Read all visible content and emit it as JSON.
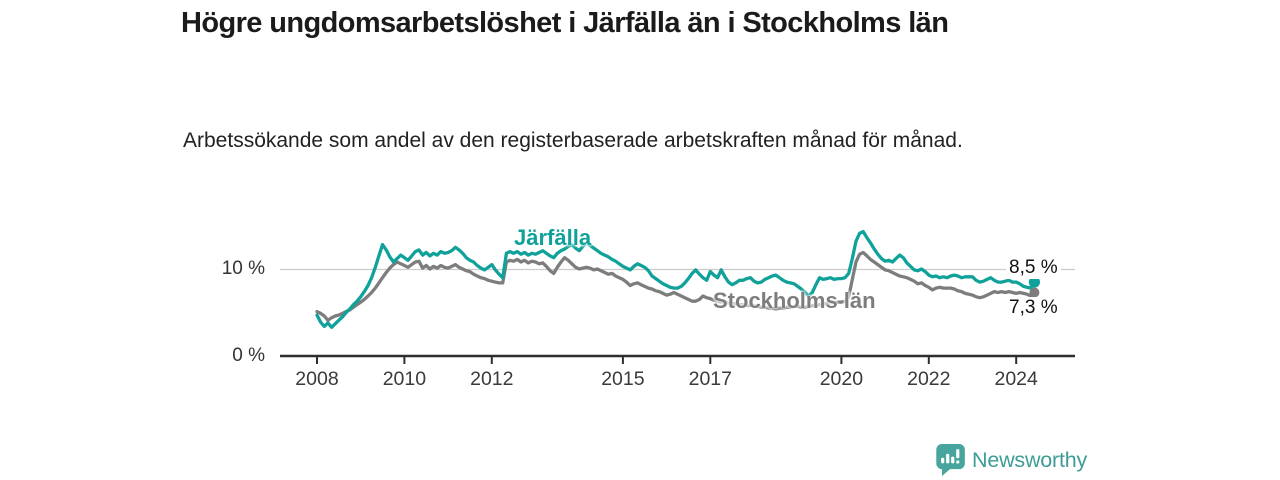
{
  "header": {
    "title": "Högre ungdomsarbetslöshet i Järfälla än i Stockholms län",
    "subtitle": "Arbetssökande som andel av den registerbaserade arbetskraften månad för månad."
  },
  "chart_data": {
    "type": "line",
    "title": "Högre ungdomsarbetslöshet i Järfälla än i Stockholms län",
    "subtitle": "Arbetssökande som andel av den registerbaserade arbetskraften månad för månad.",
    "x_start": 2008.0,
    "x_step_years": 0.0833333,
    "x_end": 2024.5,
    "ylim": [
      0,
      15.5
    ],
    "grid": "horizontal-at-10-only",
    "legend_position": "inline-labels",
    "y_ticks": [
      {
        "value": 0,
        "label": "0 %"
      },
      {
        "value": 10,
        "label": "10 %"
      }
    ],
    "x_ticks": [
      {
        "year": 2008,
        "label": "2008"
      },
      {
        "year": 2010,
        "label": "2010"
      },
      {
        "year": 2012,
        "label": "2012"
      },
      {
        "year": 2015,
        "label": "2015"
      },
      {
        "year": 2017,
        "label": "2017"
      },
      {
        "year": 2020,
        "label": "2020"
      },
      {
        "year": 2022,
        "label": "2022"
      },
      {
        "year": 2024,
        "label": "2024"
      }
    ],
    "series": [
      {
        "name": "Järfälla",
        "color": "#10A29A",
        "end_label": "8,5 %",
        "end_value": 8.5,
        "values": [
          4.7,
          3.9,
          3.4,
          3.8,
          3.3,
          3.7,
          4.1,
          4.5,
          5.0,
          5.4,
          5.9,
          6.3,
          6.8,
          7.4,
          8.1,
          9.0,
          10.2,
          11.5,
          12.8,
          12.2,
          11.4,
          10.8,
          11.2,
          11.6,
          11.3,
          11.0,
          11.5,
          12.0,
          12.2,
          11.6,
          11.9,
          11.5,
          11.8,
          11.6,
          12.0,
          11.8,
          11.9,
          12.1,
          12.5,
          12.2,
          11.8,
          11.3,
          11.0,
          10.8,
          10.4,
          10.1,
          9.9,
          10.2,
          10.5,
          9.9,
          9.4,
          9.0,
          11.8,
          12.0,
          11.8,
          12.0,
          11.7,
          11.9,
          11.6,
          11.8,
          11.7,
          11.9,
          12.1,
          11.8,
          11.5,
          11.3,
          11.8,
          12.1,
          12.3,
          12.6,
          12.8,
          12.4,
          12.1,
          12.6,
          13.0,
          12.7,
          12.4,
          12.1,
          11.8,
          11.6,
          11.4,
          11.1,
          10.9,
          10.6,
          10.3,
          10.1,
          9.9,
          10.3,
          10.6,
          10.4,
          10.2,
          9.8,
          9.2,
          8.9,
          8.6,
          8.3,
          8.1,
          7.9,
          7.8,
          7.8,
          8.0,
          8.4,
          8.9,
          9.5,
          9.9,
          9.4,
          9.0,
          8.7,
          9.7,
          9.3,
          9.0,
          9.9,
          9.1,
          8.5,
          8.2,
          8.4,
          8.7,
          8.7,
          8.9,
          9.0,
          8.6,
          8.4,
          8.5,
          8.8,
          9.0,
          9.2,
          9.3,
          9.0,
          8.7,
          8.5,
          8.4,
          8.3,
          8.0,
          7.7,
          7.3,
          6.9,
          7.3,
          8.2,
          9.0,
          8.8,
          8.9,
          9.0,
          8.8,
          8.9,
          8.9,
          9.0,
          9.5,
          11.2,
          13.2,
          14.1,
          14.3,
          13.6,
          13.0,
          12.3,
          11.7,
          11.2,
          10.9,
          11.0,
          10.8,
          11.2,
          11.6,
          11.3,
          10.7,
          10.3,
          9.9,
          9.8,
          10.0,
          9.7,
          9.3,
          9.1,
          9.2,
          9.0,
          9.1,
          9.0,
          9.2,
          9.3,
          9.2,
          9.0,
          9.1,
          9.1,
          9.1,
          8.7,
          8.5,
          8.6,
          8.8,
          9.0,
          8.7,
          8.5,
          8.5,
          8.6,
          8.7,
          8.5,
          8.5,
          8.3,
          8.0,
          7.9,
          7.8,
          8.5
        ]
      },
      {
        "name": "Stockholms län",
        "color": "#7D7D7D",
        "end_label": "7,3 %",
        "end_value": 7.3,
        "values": [
          5.1,
          4.9,
          4.6,
          4.1,
          4.4,
          4.6,
          4.7,
          4.9,
          5.1,
          5.3,
          5.6,
          5.9,
          6.2,
          6.5,
          6.9,
          7.3,
          7.8,
          8.4,
          9.0,
          9.6,
          10.1,
          10.5,
          10.8,
          10.6,
          10.4,
          10.2,
          10.5,
          10.8,
          10.9,
          10.1,
          10.4,
          10.0,
          10.3,
          10.1,
          10.4,
          10.2,
          10.1,
          10.3,
          10.5,
          10.2,
          10.0,
          9.8,
          9.7,
          9.4,
          9.2,
          9.0,
          8.9,
          8.7,
          8.6,
          8.5,
          8.4,
          8.4,
          10.8,
          11.0,
          10.9,
          11.1,
          10.8,
          11.0,
          10.7,
          10.9,
          10.8,
          10.6,
          10.7,
          10.3,
          9.8,
          9.5,
          10.2,
          10.8,
          11.3,
          11.0,
          10.6,
          10.2,
          10.0,
          10.1,
          10.2,
          10.1,
          9.9,
          10.0,
          9.8,
          9.6,
          9.4,
          9.5,
          9.2,
          9.0,
          8.8,
          8.5,
          8.1,
          8.3,
          8.4,
          8.2,
          8.0,
          7.8,
          7.7,
          7.5,
          7.4,
          7.2,
          7.0,
          7.1,
          7.3,
          7.1,
          6.9,
          6.7,
          6.5,
          6.3,
          6.3,
          6.5,
          6.9,
          6.7,
          6.6,
          6.4,
          6.3,
          6.2,
          6.1,
          6.1,
          6.0,
          6.0,
          5.9,
          5.9,
          5.8,
          5.8,
          5.8,
          5.7,
          5.6,
          5.6,
          5.5,
          5.5,
          5.4,
          5.5,
          5.5,
          5.6,
          5.6,
          5.7,
          5.7,
          5.6,
          5.6,
          5.7,
          5.8,
          5.8,
          5.9,
          6.0,
          6.0,
          6.1,
          6.1,
          6.2,
          6.2,
          6.3,
          6.8,
          8.8,
          10.8,
          11.7,
          11.9,
          11.5,
          11.1,
          10.8,
          10.5,
          10.2,
          9.9,
          9.8,
          9.6,
          9.4,
          9.2,
          9.1,
          9.0,
          8.8,
          8.6,
          8.3,
          8.4,
          8.1,
          7.9,
          7.6,
          7.8,
          7.9,
          7.8,
          7.8,
          7.8,
          7.7,
          7.5,
          7.4,
          7.2,
          7.1,
          7.0,
          6.8,
          6.7,
          6.8,
          7.0,
          7.2,
          7.4,
          7.3,
          7.4,
          7.3,
          7.4,
          7.3,
          7.2,
          7.3,
          7.2,
          7.1,
          6.9,
          7.3
        ]
      }
    ]
  },
  "footer": {
    "brand": "Newsworthy",
    "brand_color": "#3E9C96",
    "logo_color": "#47A59D"
  }
}
